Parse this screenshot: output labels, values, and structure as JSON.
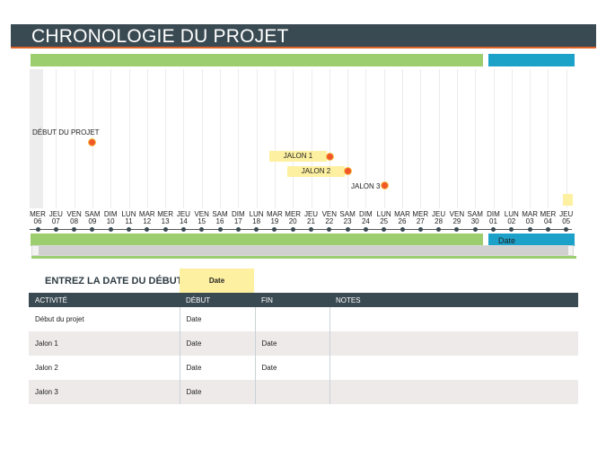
{
  "title": "CHRONOLOGIE DU PROJET",
  "timeline": {
    "blue_bar_label": "Date",
    "markers": [
      {
        "label": "DÉBUT DU PROJET",
        "style": "plain"
      },
      {
        "label": "JALON 1",
        "style": "box"
      },
      {
        "label": "JALON 2",
        "style": "box"
      },
      {
        "label": "JALON 3",
        "style": "plain"
      }
    ],
    "days": [
      {
        "dow": "MER",
        "num": "06"
      },
      {
        "dow": "JEU",
        "num": "07"
      },
      {
        "dow": "VEN",
        "num": "08"
      },
      {
        "dow": "SAM",
        "num": "09"
      },
      {
        "dow": "DIM",
        "num": "10"
      },
      {
        "dow": "LUN",
        "num": "11"
      },
      {
        "dow": "MAR",
        "num": "12"
      },
      {
        "dow": "MER",
        "num": "13"
      },
      {
        "dow": "JEU",
        "num": "14"
      },
      {
        "dow": "VEN",
        "num": "15"
      },
      {
        "dow": "SAM",
        "num": "16"
      },
      {
        "dow": "DIM",
        "num": "17"
      },
      {
        "dow": "LUN",
        "num": "18"
      },
      {
        "dow": "MAR",
        "num": "19"
      },
      {
        "dow": "MER",
        "num": "20"
      },
      {
        "dow": "JEU",
        "num": "21"
      },
      {
        "dow": "VEN",
        "num": "22"
      },
      {
        "dow": "SAM",
        "num": "23"
      },
      {
        "dow": "DIM",
        "num": "24"
      },
      {
        "dow": "LUN",
        "num": "25"
      },
      {
        "dow": "MAR",
        "num": "26"
      },
      {
        "dow": "MER",
        "num": "27"
      },
      {
        "dow": "JEU",
        "num": "28"
      },
      {
        "dow": "VEN",
        "num": "29"
      },
      {
        "dow": "SAM",
        "num": "30"
      },
      {
        "dow": "DIM",
        "num": "01"
      },
      {
        "dow": "LUN",
        "num": "02"
      },
      {
        "dow": "MAR",
        "num": "03"
      },
      {
        "dow": "MER",
        "num": "04"
      },
      {
        "dow": "JEU",
        "num": "05"
      }
    ]
  },
  "start_date": {
    "label": "ENTREZ LA DATE DU DÉBUT :",
    "value": "Date"
  },
  "table": {
    "headers": [
      "ACTIVITÉ",
      "DÉBUT",
      "FIN",
      "NOTES"
    ],
    "rows": [
      [
        "Début du projet",
        "Date",
        "",
        ""
      ],
      [
        "Jalon 1",
        "Date",
        "Date",
        ""
      ],
      [
        "Jalon 2",
        "Date",
        "Date",
        ""
      ],
      [
        "Jalon 3",
        "Date",
        "",
        ""
      ]
    ]
  },
  "colors": {
    "header": "#3a4a52",
    "accent": "#e0642a",
    "green": "#9ccd6f",
    "blue": "#1ca1c8",
    "marker": "#f0582a",
    "highlight": "#fdf0a0"
  }
}
